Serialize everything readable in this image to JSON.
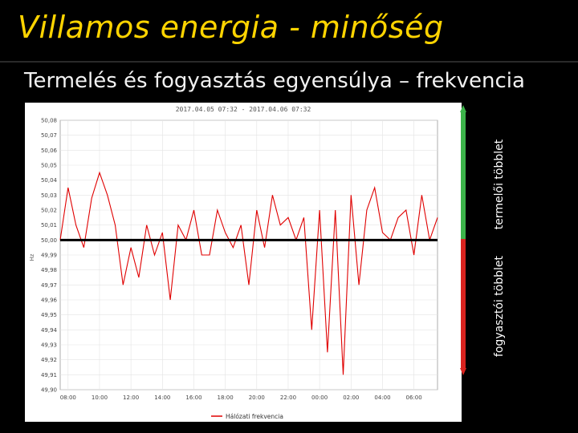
{
  "slide": {
    "title": "Villamos energia - minőség",
    "subtitle": "Termelés és fogyasztás egyensúlya – frekvencia",
    "surplus_production_label": "termelői többlet",
    "surplus_consumption_label": "fogyasztói többlet"
  },
  "colors": {
    "title": "#ffd400",
    "series": "#e00000",
    "reference_line": "#000000",
    "arrow_up": "#3cb34a",
    "arrow_down": "#d9231f"
  },
  "chart_data": {
    "type": "line",
    "title": "2017.04.05 07:32 - 2017.04.06 07:32",
    "xlabel": "",
    "ylabel": "Hz",
    "ylim": [
      49.9,
      50.08
    ],
    "y_ticks": [
      "50,08",
      "50,07",
      "50,06",
      "50,05",
      "50,04",
      "50,03",
      "50,02",
      "50,01",
      "50,00",
      "49,99",
      "49,98",
      "49,97",
      "49,96",
      "49,95",
      "49,94",
      "49,93",
      "49,92",
      "49,91",
      "49,90"
    ],
    "x_ticks": [
      "08:00",
      "10:00",
      "12:00",
      "14:00",
      "16:00",
      "18:00",
      "20:00",
      "22:00",
      "00:00",
      "02:00",
      "04:00",
      "06:00"
    ],
    "reference_value": 50.0,
    "legend": "Hálózati frekvencia",
    "grid": true,
    "series": [
      {
        "name": "Hálózati frekvencia",
        "x": [
          0,
          0.5,
          1,
          1.5,
          2,
          2.5,
          3,
          3.5,
          4,
          4.5,
          5,
          5.5,
          6,
          6.5,
          7,
          7.5,
          8,
          8.5,
          9,
          9.5,
          10,
          10.5,
          11,
          11.5,
          12,
          12.5,
          13,
          13.5,
          14,
          14.5,
          15,
          15.5,
          16,
          16.5,
          17,
          17.5,
          18,
          18.5,
          19,
          19.5,
          20,
          20.5,
          21,
          21.5,
          22,
          22.5,
          23,
          23.5,
          24
        ],
        "values": [
          50.0,
          50.035,
          50.01,
          49.995,
          50.028,
          50.045,
          50.03,
          50.01,
          49.97,
          49.995,
          49.975,
          50.01,
          49.99,
          50.005,
          49.96,
          50.01,
          50.0,
          50.02,
          49.99,
          49.99,
          50.02,
          50.005,
          49.995,
          50.01,
          49.97,
          50.02,
          49.995,
          50.03,
          50.01,
          50.015,
          50.0,
          50.015,
          49.94,
          50.02,
          49.925,
          50.02,
          49.91,
          50.03,
          49.97,
          50.02,
          50.035,
          50.005,
          50.0,
          50.015,
          50.02,
          49.99,
          50.03,
          50.0,
          50.015
        ]
      }
    ]
  }
}
